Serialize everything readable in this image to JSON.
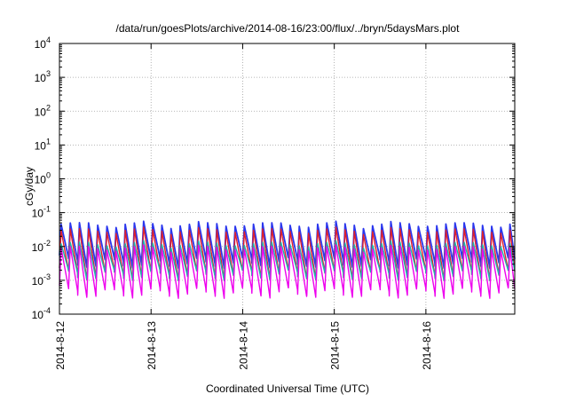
{
  "chart_data": {
    "type": "line",
    "title": "/data/run/goesPlots/archive/2014-08-16/23:00/flux/../bryn/5daysMars.plot",
    "xlabel": "Coordinated Universal Time (UTC)",
    "ylabel": "cGy/day",
    "yscale": "log",
    "ylim": [
      0.0001,
      10000
    ],
    "y_ticks": [
      {
        "value": 0.0001,
        "base": "10",
        "exp": "-4"
      },
      {
        "value": 0.001,
        "base": "10",
        "exp": "-3"
      },
      {
        "value": 0.01,
        "base": "10",
        "exp": "-2"
      },
      {
        "value": 0.1,
        "base": "10",
        "exp": "-1"
      },
      {
        "value": 1,
        "base": "10",
        "exp": "0"
      },
      {
        "value": 10,
        "base": "10",
        "exp": "1"
      },
      {
        "value": 100,
        "base": "10",
        "exp": "2"
      },
      {
        "value": 1000,
        "base": "10",
        "exp": "3"
      },
      {
        "value": 10000,
        "base": "10",
        "exp": "4"
      }
    ],
    "x_range_days": [
      0,
      4.97
    ],
    "x_ticks": [
      {
        "label": "2014-8-12",
        "day": 0
      },
      {
        "label": "2014-8-13",
        "day": 1
      },
      {
        "label": "2014-8-14",
        "day": 2
      },
      {
        "label": "2014-8-15",
        "day": 3
      },
      {
        "label": "2014-8-16",
        "day": 4
      }
    ],
    "grid": true,
    "cycle_days": 0.1,
    "series": [
      {
        "color": "#2a36ee",
        "peak": 0.045,
        "trough": 0.0035
      },
      {
        "color": "#e0202a",
        "peak": 0.03,
        "trough": 0.0015
      },
      {
        "color": "#20b2aa",
        "peak": 0.012,
        "trough": 0.0015
      },
      {
        "color": "#ee00ee",
        "peak": 0.009,
        "trough": 0.00045
      }
    ]
  }
}
